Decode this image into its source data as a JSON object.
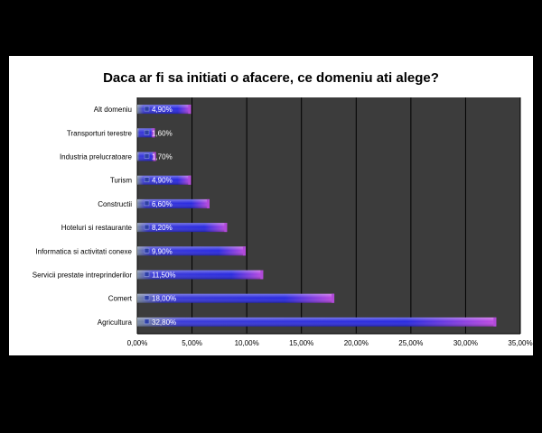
{
  "chart_data": {
    "type": "bar",
    "orientation": "horizontal",
    "title": "Daca ar fi sa initiati o afacere, ce domeniu ati alege?",
    "categories": [
      "Alt domeniu",
      "Transporturi terestre",
      "Industria prelucratoare",
      "Turism",
      "Constructii",
      "Hoteluri si restaurante",
      "Informatica si activitati conexe",
      "Servicii prestate intreprinderilor",
      "Comert",
      "Agricultura"
    ],
    "values": [
      4.9,
      1.6,
      1.7,
      4.9,
      6.6,
      8.2,
      9.9,
      11.5,
      18.0,
      32.8
    ],
    "data_labels": [
      "4,90%",
      "1,60%",
      "1,70%",
      "4,90%",
      "6,60%",
      "8,20%",
      "9,90%",
      "11,50%",
      "18,00%",
      "32,80%"
    ],
    "xlim": [
      0,
      35
    ],
    "xticks": [
      "0,00%",
      "5,00%",
      "10,00%",
      "15,00%",
      "20,00%",
      "25,00%",
      "30,00%",
      "35,00%"
    ],
    "xlabel": "",
    "ylabel": "",
    "grid": true,
    "legend": "none",
    "colors": {
      "plot_background": "#3c3c3c",
      "page_background": "#000000",
      "panel_background": "#ffffff",
      "grid": "#000000",
      "bar_start": "#6b7fa8",
      "bar_mid": "#2222dd",
      "bar_end": "#c04ce0"
    }
  }
}
